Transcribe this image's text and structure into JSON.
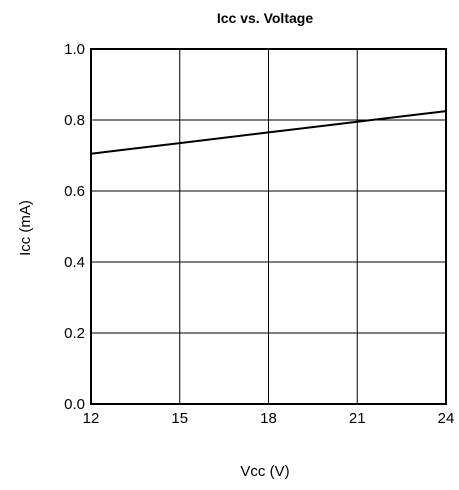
{
  "chart_data": {
    "type": "line",
    "title": "Icc vs. Voltage",
    "xlabel": "Vcc (V)",
    "ylabel": "Icc (mA)",
    "xlim": [
      12,
      24
    ],
    "ylim": [
      0.0,
      1.0
    ],
    "grid": true,
    "x_ticks": [
      12,
      15,
      18,
      21,
      24
    ],
    "y_ticks": [
      0.0,
      0.2,
      0.4,
      0.6,
      0.8,
      1.0
    ],
    "x_tick_labels": [
      "12",
      "15",
      "18",
      "21",
      "24"
    ],
    "y_tick_labels": [
      "0.0",
      "0.2",
      "0.4",
      "0.6",
      "0.8",
      "1.0"
    ],
    "series": [
      {
        "x": [
          12,
          15,
          18,
          21,
          24
        ],
        "y": [
          0.705,
          0.735,
          0.765,
          0.795,
          0.825
        ]
      }
    ]
  }
}
